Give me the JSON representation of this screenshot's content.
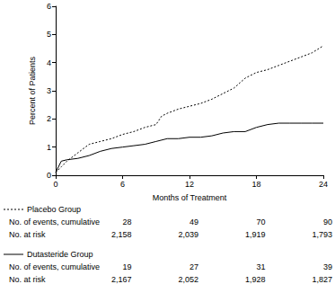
{
  "chart_data": {
    "type": "line",
    "xlabel": "Months of Treatment",
    "ylabel": "Percent of Patients",
    "x": [
      0,
      0.5,
      1,
      2,
      3,
      4,
      5,
      6,
      7,
      8,
      9,
      9.5,
      10,
      11,
      12,
      13,
      14,
      15,
      16,
      17,
      18,
      19,
      20,
      21,
      22,
      23,
      24
    ],
    "series": [
      {
        "name": "Placebo Group",
        "color": "#000000",
        "line_style": "dotted",
        "values": [
          0.1,
          0.3,
          0.5,
          0.8,
          1.1,
          1.2,
          1.3,
          1.45,
          1.55,
          1.7,
          1.8,
          2.1,
          2.2,
          2.35,
          2.45,
          2.55,
          2.7,
          2.9,
          3.1,
          3.45,
          3.65,
          3.75,
          3.9,
          4.05,
          4.2,
          4.35,
          4.6
        ]
      },
      {
        "name": "Dutasteride Group",
        "color": "#000000",
        "line_style": "solid",
        "values": [
          0.1,
          0.5,
          0.55,
          0.6,
          0.7,
          0.85,
          0.95,
          1.0,
          1.05,
          1.1,
          1.2,
          1.25,
          1.3,
          1.3,
          1.35,
          1.35,
          1.4,
          1.5,
          1.55,
          1.55,
          1.7,
          1.8,
          1.85,
          1.85,
          1.85,
          1.85,
          1.85
        ]
      }
    ],
    "xlim": [
      0,
      24
    ],
    "xticks": [
      0,
      6,
      12,
      18,
      24
    ],
    "ylim": [
      0,
      6
    ],
    "yticks": [
      0,
      1,
      2,
      3,
      4,
      5,
      6
    ],
    "grid": false
  },
  "risk_table": {
    "groups": [
      {
        "name": "Placebo Group",
        "line_style": "dotted",
        "rows": [
          {
            "label": "No. of events, cumulative",
            "values": [
              "28",
              "49",
              "70",
              "90"
            ]
          },
          {
            "label": "No. at risk",
            "values": [
              "2,158",
              "2,039",
              "1,919",
              "1,793"
            ]
          }
        ]
      },
      {
        "name": "Dutasteride Group",
        "line_style": "solid",
        "rows": [
          {
            "label": "No. of events, cumulative",
            "values": [
              "19",
              "27",
              "31",
              "39"
            ]
          },
          {
            "label": "No. at risk",
            "values": [
              "2,167",
              "2,052",
              "1,928",
              "1,827"
            ]
          }
        ]
      }
    ]
  }
}
